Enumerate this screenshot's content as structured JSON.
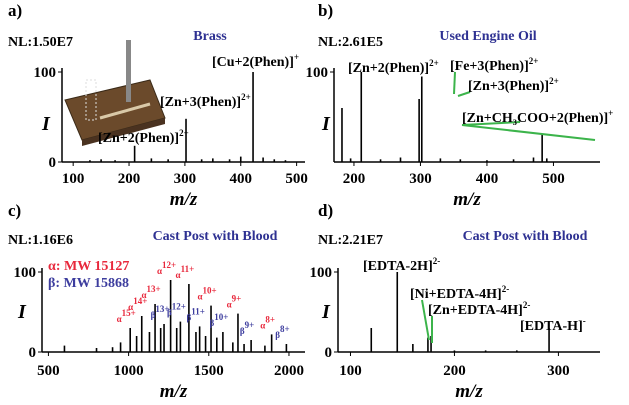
{
  "chart_data": [
    {
      "type": "stem",
      "label": "a)",
      "nl": "NL:1.50E7",
      "title": "Brass",
      "title_color": "#2e3192",
      "xlabel": "m/z",
      "ylabel": "I",
      "xlim": [
        80,
        515
      ],
      "xticks": [
        100,
        200,
        300,
        400,
        500
      ],
      "ylim": [
        0,
        100
      ],
      "yticks": [
        0,
        100
      ],
      "color": "#000000",
      "x": [
        130,
        150,
        175,
        210,
        240,
        270,
        302,
        330,
        350,
        380,
        400,
        422,
        440,
        460,
        480
      ],
      "values": [
        2,
        3,
        2,
        18,
        4,
        3,
        48,
        3,
        4,
        3,
        6,
        100,
        5,
        3,
        2
      ],
      "annotations": [
        {
          "text": "[Cu+2(Phen)]",
          "sup": "+"
        },
        {
          "text": "[Zn+3(Phen)]",
          "sup": "2+"
        },
        {
          "text": "[Zn+2(Phen)]",
          "sup": "2+"
        }
      ]
    },
    {
      "type": "stem",
      "label": "b)",
      "nl": "NL:2.61E5",
      "title": "Used Engine Oil",
      "title_color": "#2e3192",
      "xlabel": "m/z",
      "ylabel": "I",
      "xlim": [
        170,
        570
      ],
      "xticks": [
        200,
        300,
        400,
        500
      ],
      "ylim": [
        0,
        100
      ],
      "yticks": [
        100
      ],
      "color": "#000000",
      "leader_color": "#3cb44b",
      "x": [
        182,
        195,
        211,
        240,
        270,
        298,
        302,
        330,
        360,
        400,
        440,
        470,
        483,
        490
      ],
      "values": [
        60,
        4,
        100,
        3,
        5,
        70,
        95,
        4,
        3,
        2,
        3,
        5,
        30,
        4
      ],
      "annotations": [
        {
          "text": "[Zn+2(Phen)]",
          "sup": "2+"
        },
        {
          "text": "[Fe+3(Phen)]",
          "sup": "2+"
        },
        {
          "text": "[Zn+3(Phen)]",
          "sup": "2+"
        },
        {
          "text": "[Zn+CH₃COO+2(Phen)]",
          "sup": "+"
        }
      ]
    },
    {
      "type": "stem",
      "label": "c)",
      "nl": "NL:1.16E6",
      "title": "Cast Post with Blood",
      "title_color": "#2e3192",
      "xlabel": "m/z",
      "ylabel": "I",
      "xlim": [
        460,
        2100
      ],
      "xticks": [
        500,
        1000,
        1500,
        2000
      ],
      "ylim": [
        0,
        100
      ],
      "yticks": [
        0,
        100
      ],
      "color": "#000000",
      "x": [
        600,
        950,
        1010,
        1082,
        1165,
        1221,
        1262,
        1323,
        1376,
        1443,
        1514,
        1588,
        1682,
        1764,
        1892,
        1984,
        800,
        1050,
        1130,
        1200,
        1300,
        1420,
        1480,
        1550,
        1650,
        1720,
        900,
        1850
      ],
      "values": [
        8,
        12,
        30,
        45,
        60,
        35,
        90,
        38,
        85,
        32,
        58,
        25,
        48,
        15,
        22,
        10,
        5,
        20,
        25,
        30,
        30,
        25,
        20,
        18,
        12,
        10,
        6,
        8
      ],
      "legend": [
        {
          "text": "α: MW 15127",
          "color": "#e8283c"
        },
        {
          "text": "β: MW 15868",
          "color": "#3d3d9e"
        }
      ],
      "annotations": [
        {
          "text": "α",
          "sup": "15+",
          "color": "#e8283c"
        },
        {
          "text": "α",
          "sup": "14+",
          "color": "#e8283c"
        },
        {
          "text": "α",
          "sup": "13+",
          "color": "#e8283c"
        },
        {
          "text": "α",
          "sup": "12+",
          "color": "#e8283c"
        },
        {
          "text": "α",
          "sup": "11+",
          "color": "#e8283c"
        },
        {
          "text": "α",
          "sup": "10+",
          "color": "#e8283c"
        },
        {
          "text": "α",
          "sup": "9+",
          "color": "#e8283c"
        },
        {
          "text": "α",
          "sup": "8+",
          "color": "#e8283c"
        },
        {
          "text": "β",
          "sup": "13+",
          "color": "#3d3d9e"
        },
        {
          "text": "β",
          "sup": "12+",
          "color": "#3d3d9e"
        },
        {
          "text": "β",
          "sup": "11+",
          "color": "#3d3d9e"
        },
        {
          "text": "β",
          "sup": "10+",
          "color": "#3d3d9e"
        },
        {
          "text": "β",
          "sup": "9+",
          "color": "#3d3d9e"
        },
        {
          "text": "β",
          "sup": "8+",
          "color": "#3d3d9e"
        }
      ]
    },
    {
      "type": "stem",
      "label": "d)",
      "nl": "NL:2.21E7",
      "title": "Cast Post with Blood",
      "title_color": "#2e3192",
      "xlabel": "m/z",
      "ylabel": "I",
      "xlim": [
        88,
        340
      ],
      "xticks": [
        100,
        200,
        300
      ],
      "ylim": [
        0,
        100
      ],
      "yticks": [
        0,
        100
      ],
      "color": "#000000",
      "leader_color": "#3cb44b",
      "x": [
        120,
        145,
        160,
        174.5,
        177.5,
        200,
        230,
        260,
        291
      ],
      "values": [
        30,
        100,
        10,
        18,
        20,
        2,
        2,
        2,
        30
      ],
      "annotations": [
        {
          "text": "[EDTA-2H]",
          "sup": "2-"
        },
        {
          "text": "[Ni+EDTA-4H]",
          "sup": "2-"
        },
        {
          "text": "[Zn+EDTA-4H]",
          "sup": "2-"
        },
        {
          "text": "[EDTA-H]",
          "sup": "-"
        }
      ]
    }
  ]
}
